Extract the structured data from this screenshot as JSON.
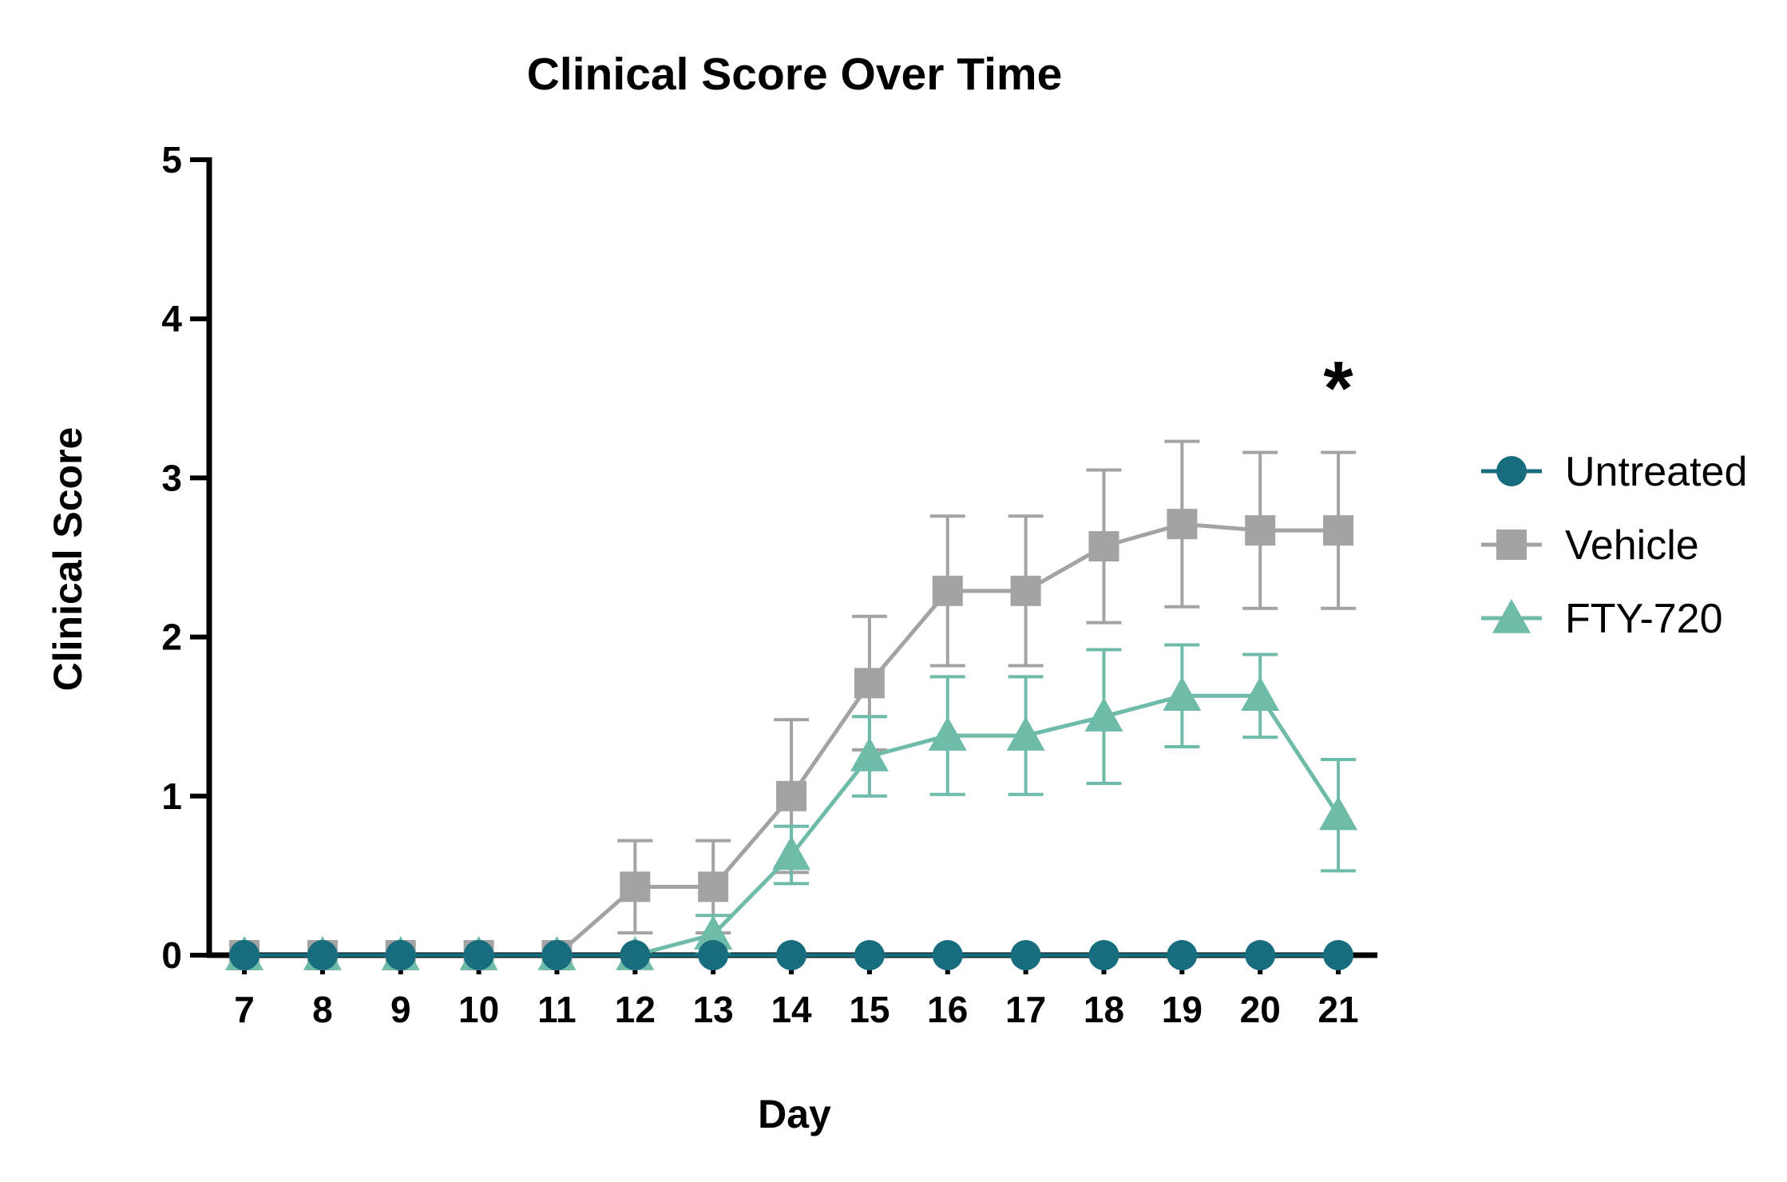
{
  "chart_data": {
    "type": "line",
    "title": "Clinical Score Over Time",
    "xlabel": "Day",
    "ylabel": "Clinical Score",
    "x": [
      7,
      8,
      9,
      10,
      11,
      12,
      13,
      14,
      15,
      16,
      17,
      18,
      19,
      20,
      21
    ],
    "xlim": [
      6.55,
      21.5
    ],
    "ylim": [
      0,
      5
    ],
    "yticks": [
      0,
      1,
      2,
      3,
      4,
      5
    ],
    "grid": false,
    "legend_position": "right",
    "series": [
      {
        "name": "Vehicle",
        "marker": "square",
        "color": "#a3a3a3",
        "values": [
          0,
          0,
          0,
          0,
          0,
          0.43,
          0.43,
          1.0,
          1.71,
          2.29,
          2.29,
          2.57,
          2.71,
          2.67,
          2.67
        ],
        "error": [
          0,
          0,
          0,
          0,
          0,
          0.29,
          0.29,
          0.48,
          0.42,
          0.47,
          0.47,
          0.48,
          0.52,
          0.49,
          0.49
        ]
      },
      {
        "name": "FTY-720",
        "marker": "triangle",
        "color": "#6dbba8",
        "values": [
          0,
          0,
          0,
          0,
          0,
          0,
          0.13,
          0.63,
          1.25,
          1.38,
          1.38,
          1.5,
          1.63,
          1.63,
          0.88
        ],
        "error": [
          0,
          0,
          0,
          0,
          0,
          0,
          0.12,
          0.18,
          0.25,
          0.37,
          0.37,
          0.42,
          0.32,
          0.26,
          0.35
        ]
      },
      {
        "name": "Untreated",
        "marker": "circle",
        "color": "#176d7e",
        "values": [
          0,
          0,
          0,
          0,
          0,
          0,
          0,
          0,
          0,
          0,
          0,
          0,
          0,
          0,
          0
        ],
        "error": [
          0,
          0,
          0,
          0,
          0,
          0,
          0,
          0,
          0,
          0,
          0,
          0,
          0,
          0,
          0
        ]
      }
    ],
    "legend_order": [
      "Untreated",
      "Vehicle",
      "FTY-720"
    ],
    "annotations": [
      {
        "text": "*",
        "x": 21,
        "y": 3.6
      }
    ]
  }
}
